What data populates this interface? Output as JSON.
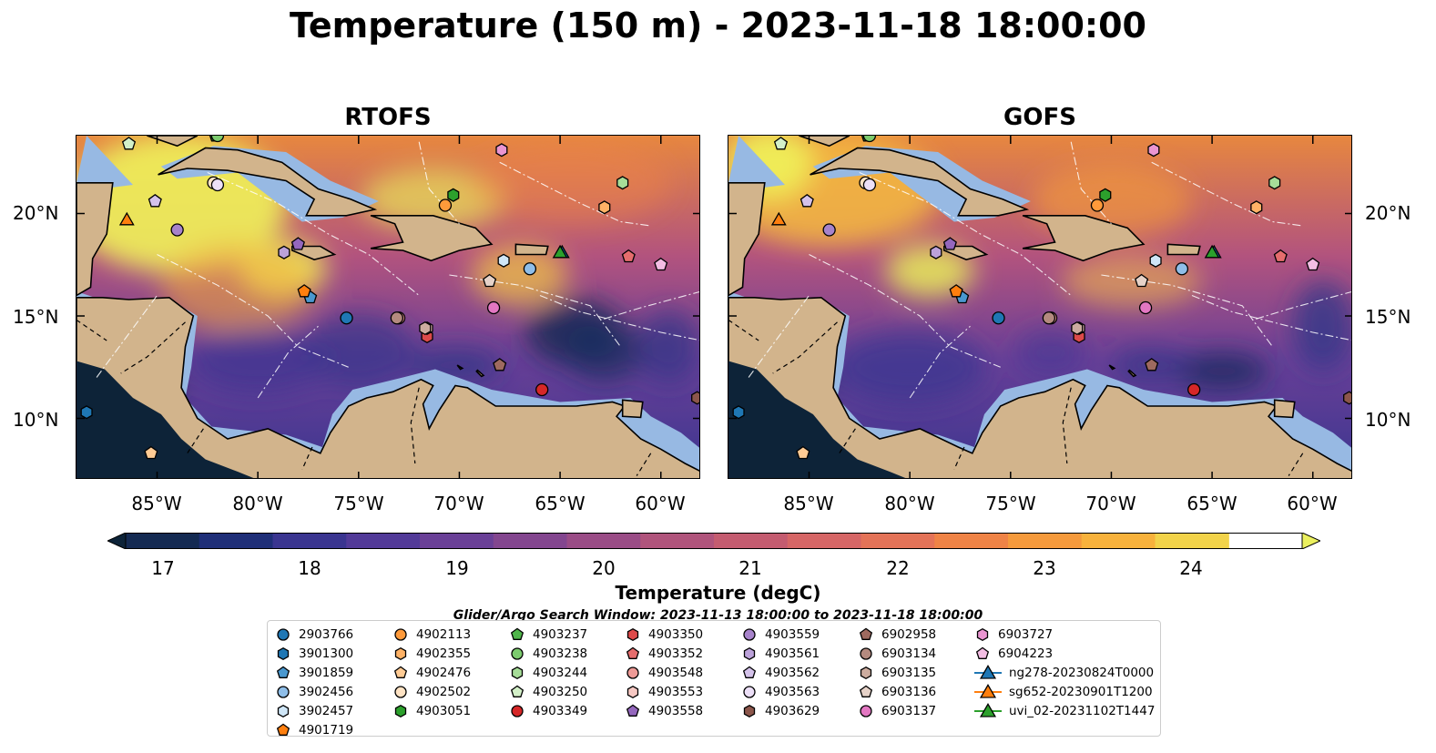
{
  "title": "Temperature (150 m) - 2023-11-18 18:00:00",
  "panels": [
    {
      "title": "RTOFS"
    },
    {
      "title": "GOFS"
    }
  ],
  "lat_labels": [
    "20°N",
    "15°N",
    "10°N"
  ],
  "lon_labels": [
    "85°W",
    "80°W",
    "75°W",
    "70°W",
    "65°W",
    "60°W"
  ],
  "map_extent": {
    "lon_min": -89,
    "lon_max": -58,
    "lat_min": 7,
    "lat_max": 23.8
  },
  "colorbar": {
    "label": "Temperature (degC)",
    "ticks": [
      "17",
      "18",
      "19",
      "20",
      "21",
      "22",
      "23",
      "24"
    ],
    "min": 16.75,
    "max": 24.5,
    "colors": [
      "#0d2338",
      "#142a52",
      "#1f2f78",
      "#3a3590",
      "#523a98",
      "#6a4097",
      "#83468f",
      "#9a4c86",
      "#b0547c",
      "#c45c70",
      "#d66666",
      "#e47358",
      "#ef8346",
      "#f59a3c",
      "#f8b23c",
      "#f2d34a",
      "#ebf05e"
    ],
    "extend": "both"
  },
  "legend": {
    "title": "Glider/Argo Search Window: 2023-11-13 18:00:00 to 2023-11-18 18:00:00",
    "items": [
      {
        "label": "2903766",
        "marker": "circle",
        "color": "#1f77b4"
      },
      {
        "label": "3901300",
        "marker": "hexagon",
        "color": "#1f77b4"
      },
      {
        "label": "3901859",
        "marker": "pentagon",
        "color": "#4a98cf"
      },
      {
        "label": "3902456",
        "marker": "circle",
        "color": "#8fbee8"
      },
      {
        "label": "3902457",
        "marker": "hexagon",
        "color": "#cfe6f7"
      },
      {
        "label": "4901719",
        "marker": "pentagon",
        "color": "#ff7f0e"
      },
      {
        "label": "4902113",
        "marker": "circle",
        "color": "#ff9a3a"
      },
      {
        "label": "4902355",
        "marker": "hexagon",
        "color": "#ffb266"
      },
      {
        "label": "4902476",
        "marker": "pentagon",
        "color": "#ffcb94"
      },
      {
        "label": "4902502",
        "marker": "circle",
        "color": "#ffe3c4"
      },
      {
        "label": "4903051",
        "marker": "hexagon",
        "color": "#2ca02c"
      },
      {
        "label": "4903237",
        "marker": "pentagon",
        "color": "#4fb64a"
      },
      {
        "label": "4903238",
        "marker": "circle",
        "color": "#7ccb6e"
      },
      {
        "label": "4903244",
        "marker": "hexagon",
        "color": "#a6dd98"
      },
      {
        "label": "4903250",
        "marker": "pentagon",
        "color": "#d3f0c8"
      },
      {
        "label": "4903349",
        "marker": "circle",
        "color": "#d62728"
      },
      {
        "label": "4903350",
        "marker": "hexagon",
        "color": "#dd4a4a"
      },
      {
        "label": "4903352",
        "marker": "pentagon",
        "color": "#e56d6d"
      },
      {
        "label": "4903548",
        "marker": "circle",
        "color": "#ee9a96"
      },
      {
        "label": "4903553",
        "marker": "hexagon",
        "color": "#f6c8c3"
      },
      {
        "label": "4903558",
        "marker": "pentagon",
        "color": "#9467bd"
      },
      {
        "label": "4903559",
        "marker": "circle",
        "color": "#a783cb"
      },
      {
        "label": "4903561",
        "marker": "hexagon",
        "color": "#bca2da"
      },
      {
        "label": "4903562",
        "marker": "pentagon",
        "color": "#d4c2ea"
      },
      {
        "label": "4903563",
        "marker": "circle",
        "color": "#ecdff7"
      },
      {
        "label": "4903629",
        "marker": "hexagon",
        "color": "#8c564b"
      },
      {
        "label": "6902958",
        "marker": "pentagon",
        "color": "#9e6a5f"
      },
      {
        "label": "6903134",
        "marker": "circle",
        "color": "#b48a7f"
      },
      {
        "label": "6903135",
        "marker": "hexagon",
        "color": "#ccac9f"
      },
      {
        "label": "6903136",
        "marker": "pentagon",
        "color": "#e6d2c8"
      },
      {
        "label": "6903137",
        "marker": "circle",
        "color": "#e377c2"
      },
      {
        "label": "6903727",
        "marker": "hexagon",
        "color": "#ea95d1"
      },
      {
        "label": "6904223",
        "marker": "pentagon",
        "color": "#f3bde3"
      },
      {
        "label": "ng278-20230824T0000",
        "marker": "triangle-line",
        "color": "#1f77b4"
      },
      {
        "label": "sg652-20230901T1200",
        "marker": "triangle-line",
        "color": "#ff7f0e"
      },
      {
        "label": "uvi_02-20231102T1447",
        "marker": "triangle-line",
        "color": "#2ca02c"
      }
    ]
  },
  "platform_positions": [
    {
      "id": "2903766",
      "lon": -75.6,
      "lat": 14.9
    },
    {
      "id": "3901300",
      "lon": -88.5,
      "lat": 10.3
    },
    {
      "id": "3901859",
      "lon": -77.4,
      "lat": 15.9
    },
    {
      "id": "3902456",
      "lon": -66.5,
      "lat": 17.3
    },
    {
      "id": "3902457",
      "lon": -67.8,
      "lat": 17.7
    },
    {
      "id": "4901719",
      "lon": -77.7,
      "lat": 16.2
    },
    {
      "id": "4902113",
      "lon": -70.7,
      "lat": 20.4
    },
    {
      "id": "4902355",
      "lon": -62.8,
      "lat": 20.3
    },
    {
      "id": "4902476",
      "lon": -85.3,
      "lat": 8.3
    },
    {
      "id": "4902502",
      "lon": -82.2,
      "lat": 21.5
    },
    {
      "id": "4903051",
      "lon": -70.3,
      "lat": 20.9
    },
    {
      "id": "4903237",
      "lon": -82.1,
      "lat": 23.8
    },
    {
      "id": "4903238",
      "lon": -82.0,
      "lat": 23.8
    },
    {
      "id": "4903244",
      "lon": -61.9,
      "lat": 21.5
    },
    {
      "id": "4903250",
      "lon": -86.4,
      "lat": 23.4
    },
    {
      "id": "4903349",
      "lon": -65.9,
      "lat": 11.4
    },
    {
      "id": "4903350",
      "lon": -71.6,
      "lat": 14.0
    },
    {
      "id": "4903352",
      "lon": -61.6,
      "lat": 17.9
    },
    {
      "id": "4903548",
      "lon": -73.0,
      "lat": 14.9
    },
    {
      "id": "4903553",
      "lon": -71.6,
      "lat": 14.4
    },
    {
      "id": "4903558",
      "lon": -78.0,
      "lat": 18.5
    },
    {
      "id": "4903559",
      "lon": -84.0,
      "lat": 19.2
    },
    {
      "id": "4903561",
      "lon": -78.7,
      "lat": 18.1
    },
    {
      "id": "4903562",
      "lon": -85.1,
      "lat": 20.6
    },
    {
      "id": "4903563",
      "lon": -82.0,
      "lat": 21.4
    },
    {
      "id": "4903629",
      "lon": -58.2,
      "lat": 11.0
    },
    {
      "id": "6902958",
      "lon": -68.0,
      "lat": 12.6
    },
    {
      "id": "6903134",
      "lon": -73.1,
      "lat": 14.9
    },
    {
      "id": "6903135",
      "lon": -71.7,
      "lat": 14.4
    },
    {
      "id": "6903136",
      "lon": -68.5,
      "lat": 16.7
    },
    {
      "id": "6903137",
      "lon": -68.3,
      "lat": 15.4
    },
    {
      "id": "6903727",
      "lon": -67.9,
      "lat": 23.1
    },
    {
      "id": "6904223",
      "lon": -60.0,
      "lat": 17.5
    },
    {
      "id": "ng278-20230824T0000",
      "lon": -64.9,
      "lat": 18.1
    },
    {
      "id": "sg652-20230901T1200",
      "lon": -86.5,
      "lat": 19.7
    },
    {
      "id": "uvi_02-20231102T1447",
      "lon": -65.0,
      "lat": 18.1
    }
  ]
}
